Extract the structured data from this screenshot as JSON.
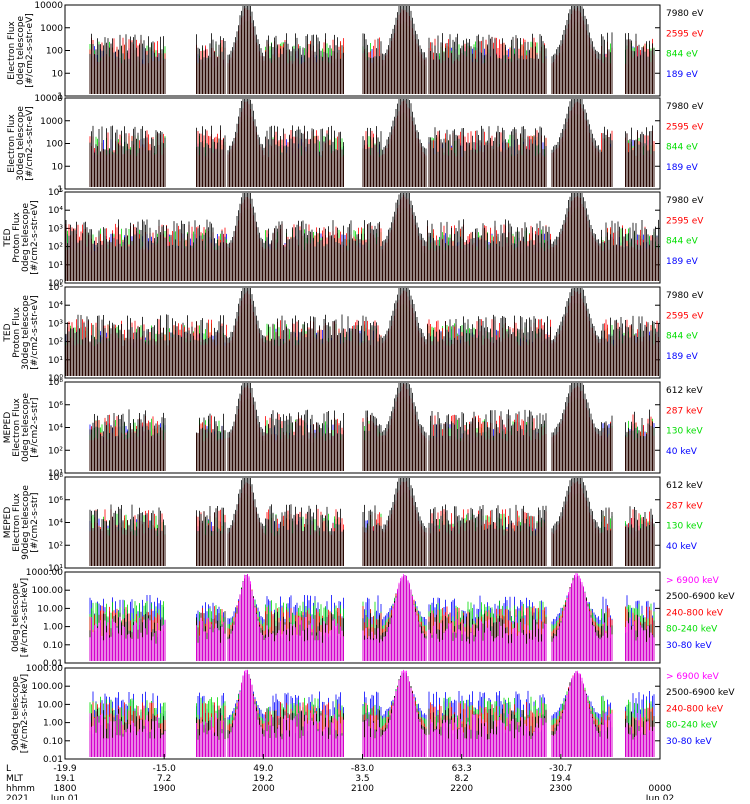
{
  "chart_data": {
    "type": "line",
    "colors": {
      "blue": "#0000ff",
      "red": "#ff0000",
      "green": "#00dd00",
      "black": "#000000",
      "magenta": "#ff00ff"
    },
    "panels": [
      {
        "ylabel": [
          "Electron Flux",
          "0deg telescope",
          "[#/cm2-s-str-eV]"
        ],
        "scale": "log",
        "ylim": [
          1,
          10000
        ],
        "yticks": [
          "1",
          "10",
          "100",
          "1000",
          "10000"
        ],
        "legend": [
          {
            "text": "7980 eV",
            "color": "black"
          },
          {
            "text": "2595 eV",
            "color": "red"
          },
          {
            "text": "844 eV",
            "color": "green"
          },
          {
            "text": "189 eV",
            "color": "blue"
          }
        ]
      },
      {
        "ylabel": [
          "Electron Flux",
          "30deg telescope",
          "[#/cm2-s-str-eV]"
        ],
        "scale": "log",
        "ylim": [
          1,
          10000
        ],
        "yticks": [
          "1",
          "10",
          "100",
          "1000",
          "10000"
        ],
        "legend": [
          {
            "text": "7980 eV",
            "color": "black"
          },
          {
            "text": "2595 eV",
            "color": "red"
          },
          {
            "text": "844 eV",
            "color": "green"
          },
          {
            "text": "189 eV",
            "color": "blue"
          }
        ]
      },
      {
        "ylabel": [
          "TED",
          "Proton Flux",
          "0deg telescope",
          "[#/cm2-s-str-eV]"
        ],
        "scale": "log",
        "ylim": [
          1,
          100000
        ],
        "yticks": [
          "10⁰",
          "10¹",
          "10²",
          "10³",
          "10⁴",
          "10⁵"
        ],
        "legend": [
          {
            "text": "7980 eV",
            "color": "black"
          },
          {
            "text": "2595 eV",
            "color": "red"
          },
          {
            "text": "844 eV",
            "color": "green"
          },
          {
            "text": "189 eV",
            "color": "blue"
          }
        ]
      },
      {
        "ylabel": [
          "TED",
          "Proton Flux",
          "30deg telescope",
          "[#/cm2-s-str-eV]"
        ],
        "scale": "log",
        "ylim": [
          1,
          100000
        ],
        "yticks": [
          "10⁰",
          "10¹",
          "10²",
          "10³",
          "10⁴",
          "10⁵"
        ],
        "legend": [
          {
            "text": "7980 eV",
            "color": "black"
          },
          {
            "text": "2595 eV",
            "color": "red"
          },
          {
            "text": "844 eV",
            "color": "green"
          },
          {
            "text": "189 eV",
            "color": "blue"
          }
        ]
      },
      {
        "ylabel": [
          "MEPED",
          "Electron Flux",
          "0deg telescope",
          "[#/cm2-s-str]"
        ],
        "scale": "log",
        "ylim": [
          10,
          1000000000
        ],
        "yticks": [
          "10¹",
          "10²",
          "10⁴",
          "10⁶",
          "10⁸"
        ],
        "legend": [
          {
            "text": "612 keV",
            "color": "black"
          },
          {
            "text": "287 keV",
            "color": "red"
          },
          {
            "text": "130 keV",
            "color": "green"
          },
          {
            "text": "40 keV",
            "color": "blue"
          }
        ]
      },
      {
        "ylabel": [
          "MEPED",
          "Electron Flux",
          "90deg telescope",
          "[#/cm2-s-str]"
        ],
        "scale": "log",
        "ylim": [
          10,
          1000000000
        ],
        "yticks": [
          "10¹",
          "10²",
          "10⁴",
          "10⁶",
          "10⁸"
        ],
        "legend": [
          {
            "text": "612 keV",
            "color": "black"
          },
          {
            "text": "287 keV",
            "color": "red"
          },
          {
            "text": "130 keV",
            "color": "green"
          },
          {
            "text": "40 keV",
            "color": "blue"
          }
        ]
      },
      {
        "ylabel": [
          "0deg telescope",
          "[#/cm2-s-str-keV]"
        ],
        "scale": "log",
        "ylim": [
          0.01,
          1000
        ],
        "yticks": [
          "0.01",
          "0.10",
          "1.00",
          "10.00",
          "100.00",
          "1000.00"
        ],
        "legend": [
          {
            "text": "> 6900 keV",
            "color": "magenta"
          },
          {
            "text": "2500-6900 keV",
            "color": "black"
          },
          {
            "text": "240-800 keV",
            "color": "red"
          },
          {
            "text": "80-240 keV",
            "color": "green"
          },
          {
            "text": "30-80 keV",
            "color": "blue"
          }
        ]
      },
      {
        "ylabel": [
          "90deg telescope",
          "[#/cm2-s-str-keV]"
        ],
        "scale": "log",
        "ylim": [
          0.01,
          1000
        ],
        "yticks": [
          "0.01",
          "0.10",
          "1.00",
          "10.00",
          "100.00",
          "1000.00"
        ],
        "legend": [
          {
            "text": "> 6900 keV",
            "color": "magenta"
          },
          {
            "text": "2500-6900 keV",
            "color": "black"
          },
          {
            "text": "240-800 keV",
            "color": "red"
          },
          {
            "text": "80-240 keV",
            "color": "green"
          },
          {
            "text": "30-80 keV",
            "color": "blue"
          }
        ]
      }
    ],
    "x_axis": {
      "row_labels": [
        "L",
        "MLT",
        "hhmm",
        "2021"
      ],
      "columns": [
        {
          "values": [
            "-19.9",
            "19.1",
            "1800",
            "Jun 01"
          ]
        },
        {
          "values": [
            "-15.0",
            "7.2",
            "1900",
            ""
          ]
        },
        {
          "values": [
            "49.0",
            "19.2",
            "2000",
            ""
          ]
        },
        {
          "values": [
            "-83.0",
            "3.5",
            "2100",
            ""
          ]
        },
        {
          "values": [
            "63.3",
            "8.2",
            "2200",
            ""
          ]
        },
        {
          "values": [
            "-30.7",
            "19.4",
            "2300",
            ""
          ]
        },
        {
          "values": [
            "",
            "",
            "0000",
            "Jun 02"
          ]
        }
      ]
    }
  }
}
